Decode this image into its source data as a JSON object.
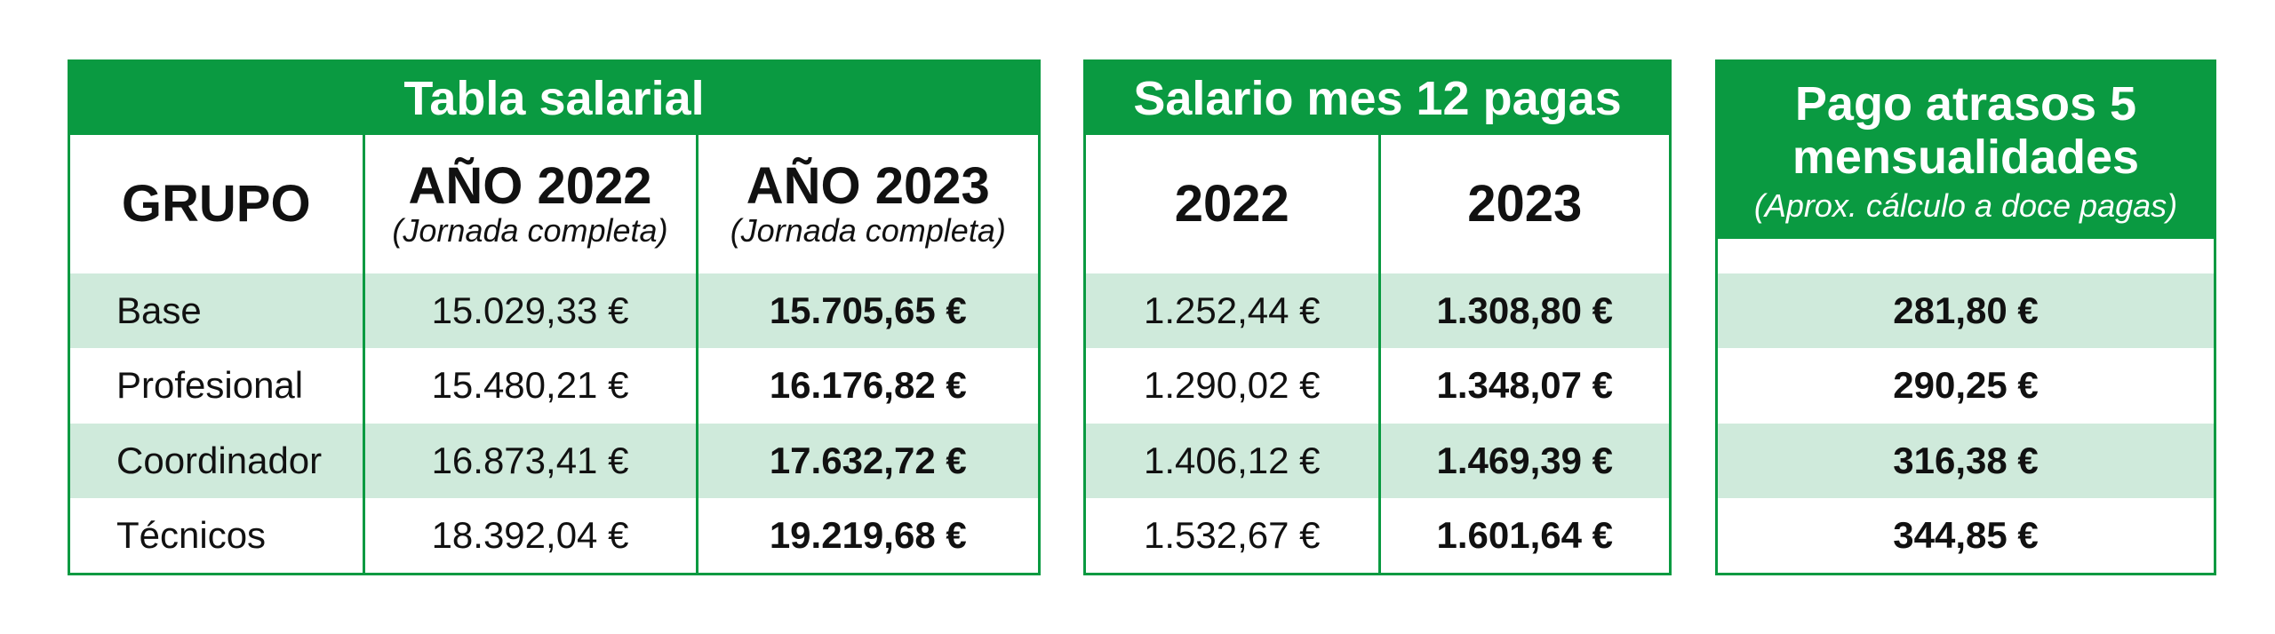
{
  "salarial": {
    "title": "Tabla salarial",
    "col_grupo": "GRUPO",
    "col_2022": "AÑO 2022",
    "col_2022_sub": "(Jornada completa)",
    "col_2023": "AÑO 2023",
    "col_2023_sub": "(Jornada completa)",
    "rows": [
      {
        "grupo": "Base",
        "y2022": "15.029,33 €",
        "y2023": "15.705,65 €"
      },
      {
        "grupo": "Profesional",
        "y2022": "15.480,21 €",
        "y2023": "16.176,82 €"
      },
      {
        "grupo": "Coordinador",
        "y2022": "16.873,41 €",
        "y2023": "17.632,72 €"
      },
      {
        "grupo": "Técnicos",
        "y2022": "18.392,04 €",
        "y2023": "19.219,68 €"
      }
    ]
  },
  "mes": {
    "title": "Salario mes 12 pagas",
    "col_2022": "2022",
    "col_2023": "2023",
    "rows": [
      {
        "y2022": "1.252,44 €",
        "y2023": "1.308,80 €"
      },
      {
        "y2022": "1.290,02 €",
        "y2023": "1.348,07 €"
      },
      {
        "y2022": "1.406,12 €",
        "y2023": "1.469,39 €"
      },
      {
        "y2022": "1.532,67 €",
        "y2023": "1.601,64 €"
      }
    ]
  },
  "atrasos": {
    "title": "Pago atrasos 5 mensualidades",
    "subtitle": "(Aprox. cálculo a doce pagas)",
    "rows": [
      "281,80 €",
      "290,25 €",
      "316,38 €",
      "344,85 €"
    ]
  },
  "colors": {
    "green": "#0a9a41",
    "light_green": "#cfeadb"
  }
}
